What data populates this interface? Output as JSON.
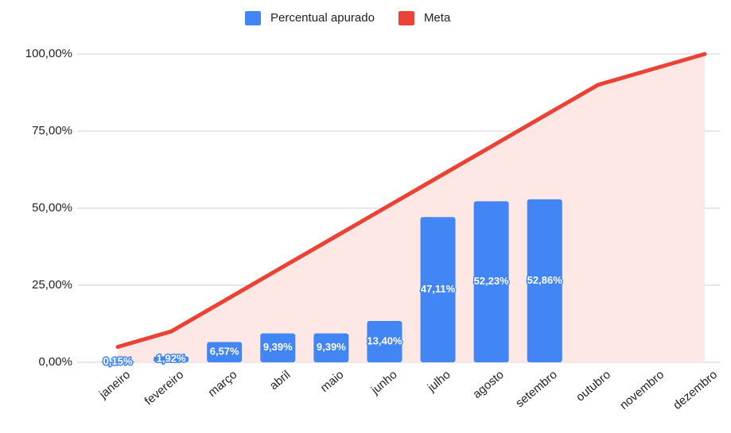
{
  "chart_data": {
    "type": "combo",
    "categories": [
      "janeiro",
      "fevereiro",
      "março",
      "abril",
      "maio",
      "junho",
      "julho",
      "agosto",
      "setembro",
      "outubro",
      "novembro",
      "dezembro"
    ],
    "series": [
      {
        "name": "Percentual apurado",
        "type": "bar",
        "color": "#4285f4",
        "values": [
          0.15,
          1.92,
          6.57,
          9.39,
          9.39,
          13.4,
          47.11,
          52.23,
          52.86,
          null,
          null,
          null
        ],
        "value_labels": [
          "0,15%",
          "1,92%",
          "6,57%",
          "9,39%",
          "9,39%",
          "13,40%",
          "47,11%",
          "52,23%",
          "52,86%",
          null,
          null,
          null
        ]
      },
      {
        "name": "Meta",
        "type": "area",
        "color": "#ea4335",
        "fill": "#fde8e6",
        "values": [
          5,
          10,
          20,
          30,
          40,
          50,
          60,
          70,
          80,
          90,
          95,
          100
        ]
      }
    ],
    "ylim": [
      0,
      100
    ],
    "yticks": [
      {
        "value": 0,
        "label": "0,00%"
      },
      {
        "value": 25,
        "label": "25,00%"
      },
      {
        "value": 50,
        "label": "50,00%"
      },
      {
        "value": 75,
        "label": "75,00%"
      },
      {
        "value": 100,
        "label": "100,00%"
      }
    ],
    "grid": true,
    "legend": "top"
  }
}
